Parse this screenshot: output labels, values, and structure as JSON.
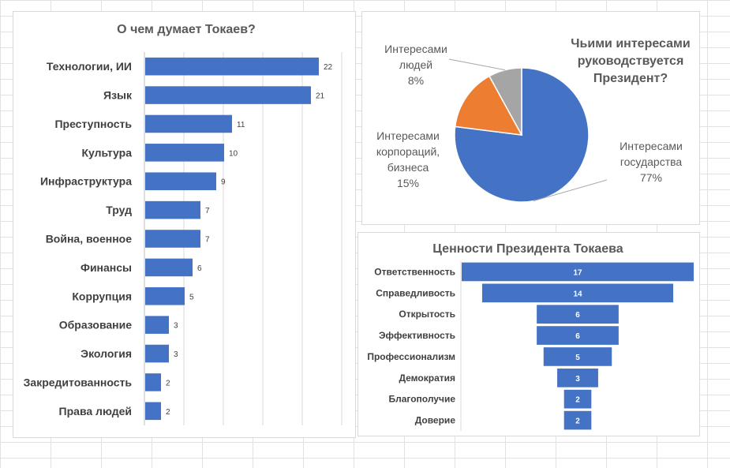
{
  "colors": {
    "bar": "#4472C4",
    "gov": "#4472C4",
    "corp": "#ED7D31",
    "people": "#A5A5A5"
  },
  "chart_data": [
    {
      "type": "bar",
      "orientation": "horizontal",
      "title": "О чем думает Токаев?",
      "categories": [
        "Технологии, ИИ",
        "Язык",
        "Преступность",
        "Культура",
        "Инфраструктура",
        "Труд",
        "Война, военное",
        "Финансы",
        "Коррупция",
        "Образование",
        "Экология",
        "Закредитованность",
        "Права людей"
      ],
      "values": [
        22,
        21,
        11,
        10,
        9,
        7,
        7,
        6,
        5,
        3,
        3,
        2,
        2
      ],
      "xlim": [
        0,
        25
      ],
      "grid": true
    },
    {
      "type": "pie",
      "title": [
        "Чьими интересами",
        "руководствуется",
        "Президент?"
      ],
      "slices": [
        {
          "label": [
            "Интересами",
            "государства"
          ],
          "pct": "77%",
          "value": 77,
          "color_key": "gov"
        },
        {
          "label": [
            "Интересами",
            "корпораций,",
            "бизнеса"
          ],
          "pct": "15%",
          "value": 15,
          "color_key": "corp"
        },
        {
          "label": [
            "Интересами",
            "людей"
          ],
          "pct": "8%",
          "value": 8,
          "color_key": "people"
        }
      ]
    },
    {
      "type": "bar",
      "orientation": "funnel",
      "title": "Ценности Президента Токаева",
      "categories": [
        "Ответственность",
        "Справедливость",
        "Открытость",
        "Эффективность",
        "Профессионализм",
        "Демократия",
        "Благополучие",
        "Доверие"
      ],
      "values": [
        17,
        14,
        6,
        6,
        5,
        3,
        2,
        2
      ]
    }
  ]
}
